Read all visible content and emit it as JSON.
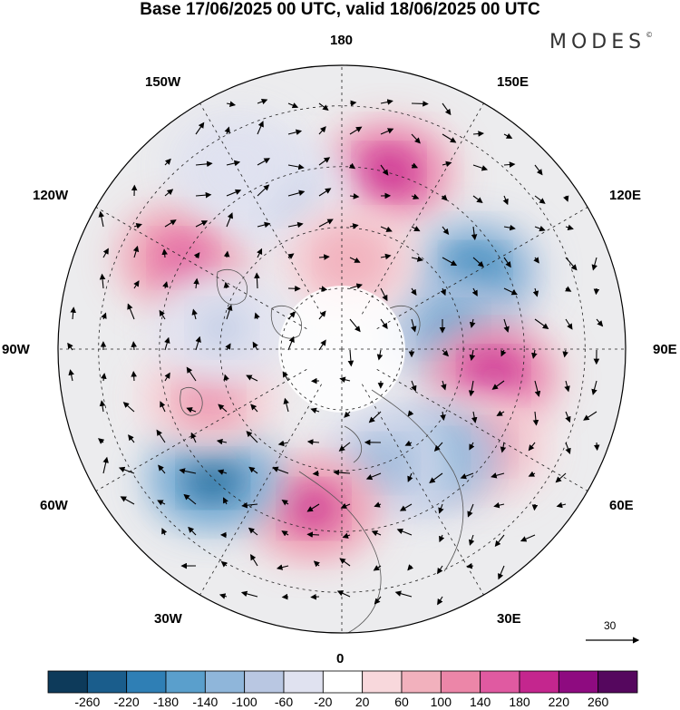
{
  "title": "Base 17/06/2025 00 UTC, valid 18/06/2025 00 UTC",
  "brand": "MODES",
  "brand_mark": "©",
  "longitude_labels": {
    "top": "180",
    "bottom": "0",
    "left": "90W",
    "right": "90E",
    "upper_left_1": "150W",
    "upper_left_2": "120W",
    "upper_right_1": "150E",
    "upper_right_2": "120E",
    "lower_left_1": "60W",
    "lower_left_2": "30W",
    "lower_right_1": "60E",
    "lower_right_2": "30E"
  },
  "reference_vector": {
    "label": "30",
    "icon": "arrow-right-icon"
  },
  "colorbar": {
    "colors": [
      "#0d3a5a",
      "#1a5d8c",
      "#2f7fb5",
      "#5a9fcc",
      "#8fb6da",
      "#b9c7e2",
      "#e0e2f0",
      "#ffffff",
      "#f8d8dc",
      "#f2b1bd",
      "#ec86a8",
      "#e05aa1",
      "#c4268e",
      "#8e0b80",
      "#55075e"
    ],
    "ticks": [
      "-260",
      "-220",
      "-180",
      "-140",
      "-100",
      "-60",
      "-20",
      "20",
      "60",
      "100",
      "140",
      "180",
      "220",
      "260"
    ]
  },
  "anomaly_blobs": [
    {
      "lon": 165,
      "lat": 45,
      "value": 200
    },
    {
      "lon": -120,
      "lat": 45,
      "value": 150
    },
    {
      "lon": 120,
      "lat": 52,
      "value": -200
    },
    {
      "lon": 100,
      "lat": 62,
      "value": -160
    },
    {
      "lon": 80,
      "lat": 52,
      "value": 210
    },
    {
      "lon": 55,
      "lat": 48,
      "value": 130
    },
    {
      "lon": 40,
      "lat": 55,
      "value": -170
    },
    {
      "lon": 20,
      "lat": 60,
      "value": -120
    },
    {
      "lon": -10,
      "lat": 50,
      "value": 180
    },
    {
      "lon": -45,
      "lat": 45,
      "value": -240
    },
    {
      "lon": -70,
      "lat": 55,
      "value": 120
    },
    {
      "lon": -160,
      "lat": 50,
      "value": -80
    },
    {
      "lon": 175,
      "lat": 68,
      "value": 90
    },
    {
      "lon": -100,
      "lat": 60,
      "value": -70
    },
    {
      "lon": -150,
      "lat": 38,
      "value": -40
    }
  ]
}
